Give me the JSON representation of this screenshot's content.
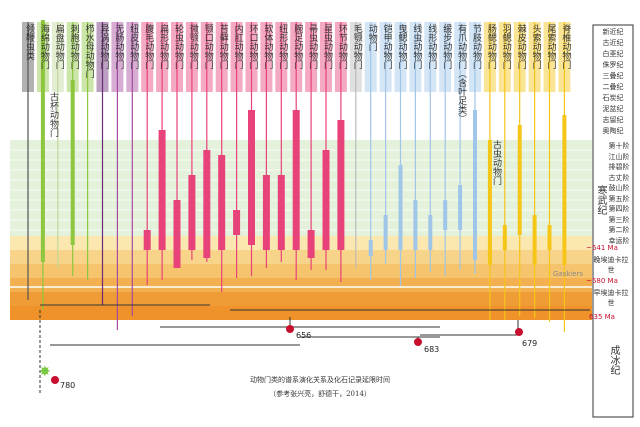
{
  "taxa": [
    {
      "name": "领鞭虫类",
      "color": "#555555"
    },
    {
      "name": "海绵动物门",
      "color": "#8dc63f"
    },
    {
      "name": "扁盘动物门",
      "color": "#c0d89a"
    },
    {
      "name": "刺胞动物门",
      "color": "#8dc63f"
    },
    {
      "name": "栉水母动物门",
      "color": "#8dc63f"
    },
    {
      "name": "异涡动物门",
      "color": "#6c2a78"
    },
    {
      "name": "无肠动物门",
      "color": "#a74aa0"
    },
    {
      "name": "纽皮动物门",
      "color": "#a74aa0"
    },
    {
      "name": "腹毛动物门",
      "color": "#e8427a"
    },
    {
      "name": "扁形动物门",
      "color": "#e8427a"
    },
    {
      "name": "轮虫动物门",
      "color": "#e8427a"
    },
    {
      "name": "微颚动物门",
      "color": "#e8427a"
    },
    {
      "name": "颚口动物门",
      "color": "#e8427a"
    },
    {
      "name": "苔藓动物门",
      "color": "#e8427a"
    },
    {
      "name": "内肛动物门",
      "color": "#e8427a"
    },
    {
      "name": "环口动物门",
      "color": "#e8427a"
    },
    {
      "name": "软体动物门",
      "color": "#e8427a"
    },
    {
      "name": "纽形动物门",
      "color": "#e8427a"
    },
    {
      "name": "腕足动物门",
      "color": "#e8427a"
    },
    {
      "name": "帚虫动物门",
      "color": "#e8427a"
    },
    {
      "name": "星虫动物门",
      "color": "#e8427a"
    },
    {
      "name": "环节动物门",
      "color": "#e8427a"
    },
    {
      "name": "毛颚动物门",
      "color": "#bbbbbb"
    },
    {
      "name": "动物门",
      "color": "#9fc5e8"
    },
    {
      "name": "铠甲动物门",
      "color": "#9fc5e8"
    },
    {
      "name": "曳鳃动物门",
      "color": "#9fc5e8"
    },
    {
      "name": "线虫动物门",
      "color": "#9fc5e8"
    },
    {
      "name": "线形动物门",
      "color": "#9fc5e8"
    },
    {
      "name": "缓步动物门",
      "color": "#9fc5e8"
    },
    {
      "name": "有爪动物门（含叶足类）",
      "color": "#9fc5e8"
    },
    {
      "name": "节肢动物门",
      "color": "#9fc5e8"
    },
    {
      "name": "肠鳃动物门",
      "color": "#f5c518"
    },
    {
      "name": "羽鳃动物门",
      "color": "#f5c518"
    },
    {
      "name": "棘皮动物门",
      "color": "#f5c518"
    },
    {
      "name": "头索动物门",
      "color": "#f5c518"
    },
    {
      "name": "尾索动物门",
      "color": "#f5c518"
    },
    {
      "name": "脊椎动物门",
      "color": "#f5c518"
    }
  ],
  "extra_labels": {
    "gubei": "古杯动物门",
    "guchong": "古虫动物门"
  },
  "periods": [
    "新近纪",
    "古近纪",
    "白垩纪",
    "侏罗纪",
    "三叠纪",
    "二叠纪",
    "石炭纪",
    "泥盆纪",
    "志留纪",
    "奥陶纪"
  ],
  "cambrian_stages": [
    "第十阶",
    "江山阶",
    "排碧阶",
    "古丈阶",
    "鼓山阶",
    "第五阶",
    "第四阶",
    "第三阶",
    "第二阶",
    "幸运阶"
  ],
  "era_labels": {
    "cambrian": "寒武纪",
    "ediacaran": "成冰纪"
  },
  "ediacaran_rows": [
    {
      "label": "晚埃迪卡拉世",
      "age": "~541 Ma"
    },
    {
      "label": "早埃迪卡拉世",
      "age": "~580 Ma"
    }
  ],
  "age_635": "635 Ma",
  "gaskiers": "Gaskiers",
  "node_labels": [
    "656",
    "683",
    "679",
    "780"
  ],
  "caption": {
    "title": "动物门类的谱系演化关系及化石记录延限时间",
    "source": "（参考张兴亮，舒德干，2014）"
  }
}
